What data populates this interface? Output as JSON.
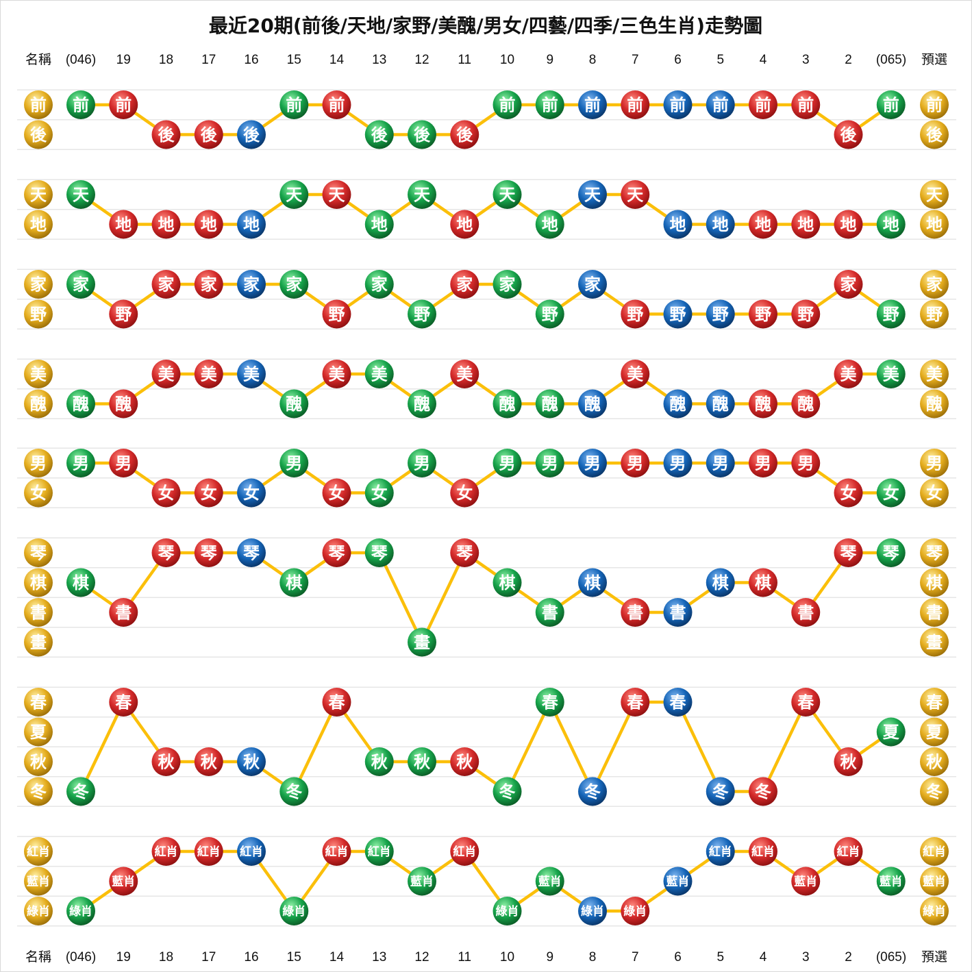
{
  "title": "最近20期(前後/天地/家野/美醜/男女/四藝/四季/三色生肖)走勢圖",
  "header": {
    "name_label": "名稱",
    "preselect_label": "預選",
    "first_issue": "(046)",
    "last_issue": "(065)",
    "periods": [
      "19",
      "18",
      "17",
      "16",
      "15",
      "14",
      "13",
      "12",
      "11",
      "10",
      "9",
      "8",
      "7",
      "6",
      "5",
      "4",
      "3",
      "2"
    ]
  },
  "footer": {
    "name_label": "名稱",
    "preselect_label": "預選",
    "first_issue": "(046)",
    "last_issue": "(065)",
    "periods": [
      "19",
      "18",
      "17",
      "16",
      "15",
      "14",
      "13",
      "12",
      "11",
      "10",
      "9",
      "8",
      "7",
      "6",
      "5",
      "4",
      "3",
      "2"
    ]
  },
  "colors": {
    "red": "#d42a2a",
    "green": "#16a34a",
    "blue": "#1565b8",
    "gold": "#e5ad1e",
    "line": "#fbbf0a",
    "grid": "#e6e6e6"
  },
  "chart_data": {
    "type": "line",
    "columns": [
      "(046)",
      "19",
      "18",
      "17",
      "16",
      "15",
      "14",
      "13",
      "12",
      "11",
      "10",
      "9",
      "8",
      "7",
      "6",
      "5",
      "4",
      "3",
      "2",
      "(065)"
    ],
    "color_codes": {
      "r": "red",
      "g": "green",
      "b": "blue"
    },
    "groups": [
      {
        "name": "前後",
        "labels": [
          "前",
          "後"
        ],
        "values": [
          "前",
          "前",
          "後",
          "後",
          "後",
          "前",
          "前",
          "後",
          "後",
          "後",
          "前",
          "前",
          "前",
          "前",
          "前",
          "前",
          "前",
          "前",
          "後",
          "前"
        ],
        "colors": [
          "g",
          "r",
          "r",
          "r",
          "b",
          "g",
          "r",
          "g",
          "g",
          "r",
          "g",
          "g",
          "b",
          "r",
          "b",
          "b",
          "r",
          "r",
          "r",
          "g"
        ]
      },
      {
        "name": "天地",
        "labels": [
          "天",
          "地"
        ],
        "values": [
          "天",
          "地",
          "地",
          "地",
          "地",
          "天",
          "天",
          "地",
          "天",
          "地",
          "天",
          "地",
          "天",
          "天",
          "地",
          "地",
          "地",
          "地",
          "地",
          "地"
        ],
        "colors": [
          "g",
          "r",
          "r",
          "r",
          "b",
          "g",
          "r",
          "g",
          "g",
          "r",
          "g",
          "g",
          "b",
          "r",
          "b",
          "b",
          "r",
          "r",
          "r",
          "g"
        ]
      },
      {
        "name": "家野",
        "labels": [
          "家",
          "野"
        ],
        "values": [
          "家",
          "野",
          "家",
          "家",
          "家",
          "家",
          "野",
          "家",
          "野",
          "家",
          "家",
          "野",
          "家",
          "野",
          "野",
          "野",
          "野",
          "野",
          "家",
          "野"
        ],
        "colors": [
          "g",
          "r",
          "r",
          "r",
          "b",
          "g",
          "r",
          "g",
          "g",
          "r",
          "g",
          "g",
          "b",
          "r",
          "b",
          "b",
          "r",
          "r",
          "r",
          "g"
        ]
      },
      {
        "name": "美醜",
        "labels": [
          "美",
          "醜"
        ],
        "values": [
          "醜",
          "醜",
          "美",
          "美",
          "美",
          "醜",
          "美",
          "美",
          "醜",
          "美",
          "醜",
          "醜",
          "醜",
          "美",
          "醜",
          "醜",
          "醜",
          "醜",
          "美",
          "美"
        ],
        "colors": [
          "g",
          "r",
          "r",
          "r",
          "b",
          "g",
          "r",
          "g",
          "g",
          "r",
          "g",
          "g",
          "b",
          "r",
          "b",
          "b",
          "r",
          "r",
          "r",
          "g"
        ]
      },
      {
        "name": "男女",
        "labels": [
          "男",
          "女"
        ],
        "values": [
          "男",
          "男",
          "女",
          "女",
          "女",
          "男",
          "女",
          "女",
          "男",
          "女",
          "男",
          "男",
          "男",
          "男",
          "男",
          "男",
          "男",
          "男",
          "女",
          "女"
        ],
        "colors": [
          "g",
          "r",
          "r",
          "r",
          "b",
          "g",
          "r",
          "g",
          "g",
          "r",
          "g",
          "g",
          "b",
          "r",
          "b",
          "b",
          "r",
          "r",
          "r",
          "g"
        ]
      },
      {
        "name": "四藝",
        "labels": [
          "琴",
          "棋",
          "書",
          "畫"
        ],
        "values": [
          "棋",
          "書",
          "琴",
          "琴",
          "琴",
          "棋",
          "琴",
          "琴",
          "畫",
          "琴",
          "棋",
          "書",
          "棋",
          "書",
          "書",
          "棋",
          "棋",
          "書",
          "琴",
          "琴"
        ],
        "colors": [
          "g",
          "r",
          "r",
          "r",
          "b",
          "g",
          "r",
          "g",
          "g",
          "r",
          "g",
          "g",
          "b",
          "r",
          "b",
          "b",
          "r",
          "r",
          "r",
          "g"
        ]
      },
      {
        "name": "四季",
        "labels": [
          "春",
          "夏",
          "秋",
          "冬"
        ],
        "values": [
          "冬",
          "春",
          "秋",
          "秋",
          "秋",
          "冬",
          "春",
          "秋",
          "秋",
          "秋",
          "冬",
          "春",
          "冬",
          "春",
          "春",
          "冬",
          "冬",
          "春",
          "秋",
          "夏"
        ],
        "colors": [
          "g",
          "r",
          "r",
          "r",
          "b",
          "g",
          "r",
          "g",
          "g",
          "r",
          "g",
          "g",
          "b",
          "r",
          "b",
          "b",
          "r",
          "r",
          "r",
          "g"
        ]
      },
      {
        "name": "三色生肖",
        "labels": [
          "紅肖",
          "藍肖",
          "綠肖"
        ],
        "values": [
          "綠肖",
          "藍肖",
          "紅肖",
          "紅肖",
          "紅肖",
          "綠肖",
          "紅肖",
          "紅肖",
          "藍肖",
          "紅肖",
          "綠肖",
          "藍肖",
          "綠肖",
          "綠肖",
          "藍肖",
          "紅肖",
          "紅肖",
          "藍肖",
          "紅肖",
          "藍肖"
        ],
        "colors": [
          "g",
          "r",
          "r",
          "r",
          "b",
          "g",
          "r",
          "g",
          "g",
          "r",
          "g",
          "g",
          "b",
          "r",
          "b",
          "b",
          "r",
          "r",
          "r",
          "g"
        ]
      }
    ]
  }
}
